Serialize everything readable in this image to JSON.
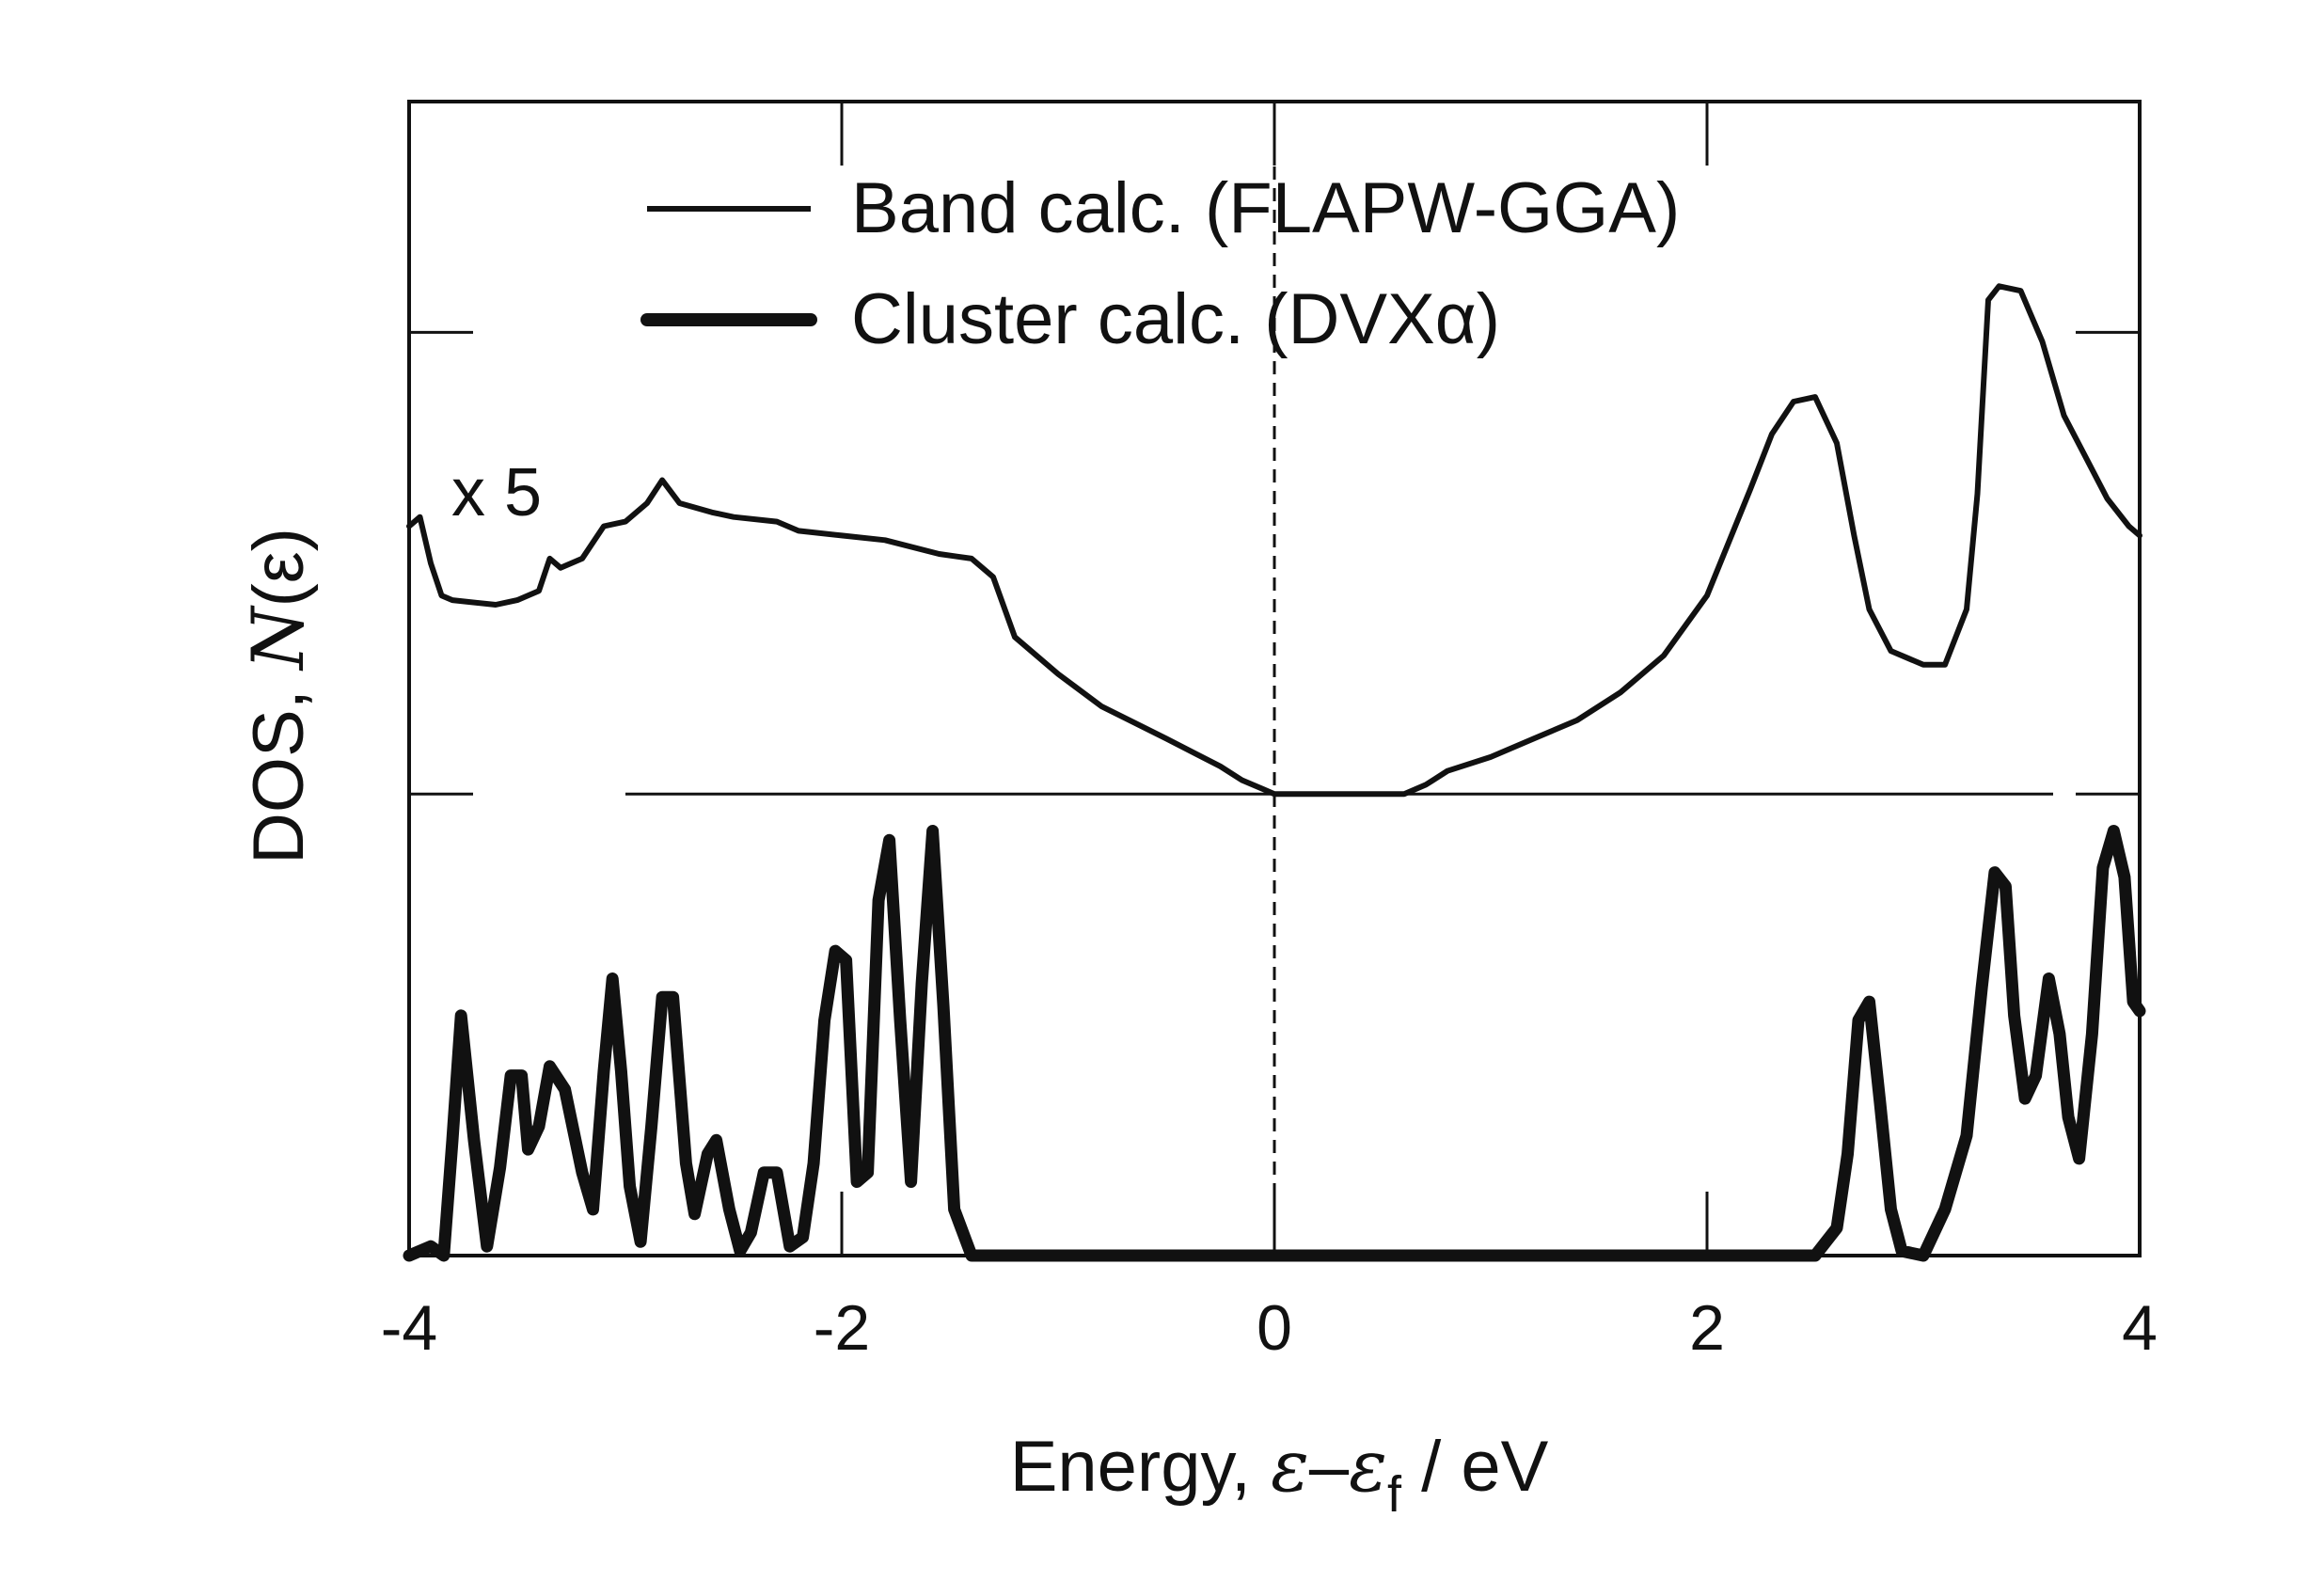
{
  "chart_data": {
    "type": "line",
    "xlabel": {
      "prefix": "Energy, ",
      "epsilon": "ε",
      "dash": "–",
      "epsilon_f": "ε",
      "subscript": "f",
      "suffix": " / eV"
    },
    "ylabel": {
      "prefix": "DOS, ",
      "italic": "N",
      "suffix": "(ε)"
    },
    "xlim": [
      -4,
      4
    ],
    "x_ticks": [
      -4,
      -2,
      0,
      2,
      4
    ],
    "x_tick_labels": [
      "-4",
      "-2",
      "0",
      "2",
      "4"
    ],
    "ylim": [
      0,
      2.5
    ],
    "y_ticks": [
      0,
      1,
      2
    ],
    "grid": false,
    "legend_position": "top-center",
    "reference_line_x": 0,
    "annotation": "x 5",
    "series": [
      {
        "name": "Band calc. (FLAPW-GGA)",
        "style": "thin",
        "color": "#111111",
        "baseline": 1,
        "points": [
          [
            -4.0,
            1.58
          ],
          [
            -3.95,
            1.6
          ],
          [
            -3.9,
            1.5
          ],
          [
            -3.85,
            1.43
          ],
          [
            -3.8,
            1.42
          ],
          [
            -3.6,
            1.41
          ],
          [
            -3.5,
            1.42
          ],
          [
            -3.4,
            1.44
          ],
          [
            -3.35,
            1.51
          ],
          [
            -3.3,
            1.49
          ],
          [
            -3.2,
            1.51
          ],
          [
            -3.1,
            1.58
          ],
          [
            -3.0,
            1.59
          ],
          [
            -2.9,
            1.63
          ],
          [
            -2.83,
            1.68
          ],
          [
            -2.75,
            1.63
          ],
          [
            -2.6,
            1.61
          ],
          [
            -2.5,
            1.6
          ],
          [
            -2.3,
            1.59
          ],
          [
            -2.2,
            1.57
          ],
          [
            -2.0,
            1.56
          ],
          [
            -1.8,
            1.55
          ],
          [
            -1.55,
            1.52
          ],
          [
            -1.4,
            1.51
          ],
          [
            -1.3,
            1.47
          ],
          [
            -1.2,
            1.34
          ],
          [
            -1.0,
            1.26
          ],
          [
            -0.8,
            1.19
          ],
          [
            -0.5,
            1.12
          ],
          [
            -0.25,
            1.06
          ],
          [
            -0.15,
            1.03
          ],
          [
            -0.05,
            1.01
          ],
          [
            0.0,
            1.0
          ],
          [
            0.3,
            1.0
          ],
          [
            0.6,
            1.0
          ],
          [
            0.7,
            1.02
          ],
          [
            0.8,
            1.05
          ],
          [
            1.0,
            1.08
          ],
          [
            1.2,
            1.12
          ],
          [
            1.4,
            1.16
          ],
          [
            1.6,
            1.22
          ],
          [
            1.8,
            1.3
          ],
          [
            2.0,
            1.43
          ],
          [
            2.2,
            1.66
          ],
          [
            2.3,
            1.78
          ],
          [
            2.4,
            1.85
          ],
          [
            2.5,
            1.86
          ],
          [
            2.6,
            1.76
          ],
          [
            2.68,
            1.56
          ],
          [
            2.75,
            1.4
          ],
          [
            2.85,
            1.31
          ],
          [
            3.0,
            1.28
          ],
          [
            3.1,
            1.28
          ],
          [
            3.2,
            1.4
          ],
          [
            3.25,
            1.65
          ],
          [
            3.3,
            2.07
          ],
          [
            3.35,
            2.1
          ],
          [
            3.45,
            2.09
          ],
          [
            3.55,
            1.98
          ],
          [
            3.65,
            1.82
          ],
          [
            3.75,
            1.73
          ],
          [
            3.85,
            1.64
          ],
          [
            3.95,
            1.58
          ],
          [
            4.0,
            1.56
          ]
        ]
      },
      {
        "name": "Cluster calc. (DVXα)",
        "style": "thick",
        "color": "#111111",
        "baseline": 0,
        "points": [
          [
            -4.0,
            0.0
          ],
          [
            -3.9,
            0.02
          ],
          [
            -3.84,
            0.0
          ],
          [
            -3.8,
            0.25
          ],
          [
            -3.76,
            0.52
          ],
          [
            -3.7,
            0.25
          ],
          [
            -3.64,
            0.02
          ],
          [
            -3.58,
            0.19
          ],
          [
            -3.53,
            0.39
          ],
          [
            -3.48,
            0.39
          ],
          [
            -3.45,
            0.23
          ],
          [
            -3.4,
            0.28
          ],
          [
            -3.35,
            0.41
          ],
          [
            -3.28,
            0.36
          ],
          [
            -3.2,
            0.18
          ],
          [
            -3.15,
            0.1
          ],
          [
            -3.1,
            0.4
          ],
          [
            -3.06,
            0.6
          ],
          [
            -3.02,
            0.4
          ],
          [
            -2.98,
            0.15
          ],
          [
            -2.93,
            0.03
          ],
          [
            -2.88,
            0.28
          ],
          [
            -2.83,
            0.56
          ],
          [
            -2.78,
            0.56
          ],
          [
            -2.72,
            0.2
          ],
          [
            -2.68,
            0.09
          ],
          [
            -2.62,
            0.22
          ],
          [
            -2.58,
            0.25
          ],
          [
            -2.52,
            0.1
          ],
          [
            -2.47,
            0.01
          ],
          [
            -2.42,
            0.05
          ],
          [
            -2.36,
            0.18
          ],
          [
            -2.3,
            0.18
          ],
          [
            -2.24,
            0.02
          ],
          [
            -2.18,
            0.04
          ],
          [
            -2.13,
            0.2
          ],
          [
            -2.08,
            0.51
          ],
          [
            -2.03,
            0.66
          ],
          [
            -1.98,
            0.64
          ],
          [
            -1.93,
            0.16
          ],
          [
            -1.88,
            0.18
          ],
          [
            -1.83,
            0.77
          ],
          [
            -1.78,
            0.9
          ],
          [
            -1.73,
            0.51
          ],
          [
            -1.68,
            0.16
          ],
          [
            -1.63,
            0.59
          ],
          [
            -1.58,
            0.92
          ],
          [
            -1.53,
            0.54
          ],
          [
            -1.48,
            0.1
          ],
          [
            -1.4,
            0.0
          ],
          [
            -1.0,
            0.0
          ],
          [
            0.0,
            0.0
          ],
          [
            1.0,
            0.0
          ],
          [
            2.0,
            0.0
          ],
          [
            2.5,
            0.0
          ],
          [
            2.55,
            0.03
          ],
          [
            2.6,
            0.06
          ],
          [
            2.65,
            0.22
          ],
          [
            2.7,
            0.51
          ],
          [
            2.75,
            0.55
          ],
          [
            2.8,
            0.33
          ],
          [
            2.85,
            0.1
          ],
          [
            2.9,
            0.01
          ],
          [
            3.0,
            0.0
          ],
          [
            3.1,
            0.1
          ],
          [
            3.2,
            0.26
          ],
          [
            3.27,
            0.58
          ],
          [
            3.33,
            0.83
          ],
          [
            3.38,
            0.8
          ],
          [
            3.42,
            0.52
          ],
          [
            3.47,
            0.34
          ],
          [
            3.52,
            0.39
          ],
          [
            3.58,
            0.6
          ],
          [
            3.63,
            0.48
          ],
          [
            3.67,
            0.3
          ],
          [
            3.72,
            0.21
          ],
          [
            3.78,
            0.48
          ],
          [
            3.83,
            0.84
          ],
          [
            3.88,
            0.92
          ],
          [
            3.93,
            0.82
          ],
          [
            3.97,
            0.55
          ],
          [
            4.0,
            0.53
          ]
        ]
      }
    ]
  }
}
